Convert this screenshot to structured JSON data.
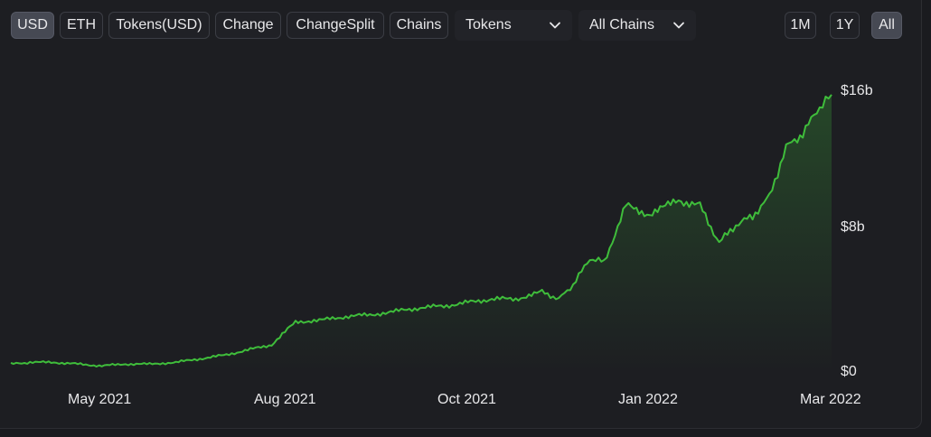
{
  "toolbar": {
    "denomination": [
      {
        "label": "USD",
        "active": true
      },
      {
        "label": "ETH",
        "active": false
      },
      {
        "label": "Tokens(USD)",
        "active": false
      },
      {
        "label": "Change",
        "active": false
      },
      {
        "label": "ChangeSplit",
        "active": false
      },
      {
        "label": "Chains",
        "active": false
      }
    ],
    "tokens_select": "Tokens",
    "chains_select": "All Chains",
    "ranges": [
      {
        "label": "1M",
        "active": false
      },
      {
        "label": "1Y",
        "active": false
      },
      {
        "label": "All",
        "active": true
      }
    ]
  },
  "colors": {
    "line": "#3fbd3b",
    "accent": "#464953"
  },
  "chart_data": {
    "type": "area",
    "x_ticks": [
      "May 2021",
      "Aug 2021",
      "Oct 2021",
      "Jan 2022",
      "Mar 2022"
    ],
    "y_ticks": [
      "$0",
      "$8b",
      "$16b"
    ],
    "ylim": [
      0,
      16
    ],
    "grid": false,
    "series": [
      {
        "x": [
          "2021-03-28",
          "2021-04-05",
          "2021-04-15",
          "2021-04-25",
          "2021-05-05",
          "2021-05-15",
          "2021-05-25",
          "2021-06-05",
          "2021-06-15",
          "2021-06-25",
          "2021-07-05",
          "2021-07-15",
          "2021-07-25",
          "2021-08-05",
          "2021-08-15",
          "2021-08-25",
          "2021-09-05",
          "2021-09-15",
          "2021-09-25",
          "2021-10-05",
          "2021-10-15",
          "2021-10-25",
          "2021-11-05",
          "2021-11-12",
          "2021-11-18",
          "2021-11-25",
          "2021-12-01",
          "2021-12-10",
          "2021-12-20",
          "2022-01-01",
          "2022-01-10",
          "2022-01-18",
          "2022-01-25",
          "2022-02-01",
          "2022-02-08",
          "2022-02-15",
          "2022-02-22",
          "2022-03-01",
          "2022-03-06"
        ],
        "values": [
          0.5,
          0.6,
          0.6,
          0.5,
          0.4,
          0.5,
          0.5,
          0.6,
          0.8,
          1.0,
          1.3,
          1.6,
          2.9,
          3.0,
          3.2,
          3.3,
          3.5,
          3.7,
          3.8,
          4.0,
          4.2,
          4.2,
          4.6,
          4.2,
          5.0,
          6.5,
          6.3,
          9.5,
          9.0,
          9.8,
          9.5,
          7.4,
          8.4,
          8.9,
          10.0,
          12.8,
          13.6,
          15.1,
          15.8
        ]
      }
    ]
  }
}
